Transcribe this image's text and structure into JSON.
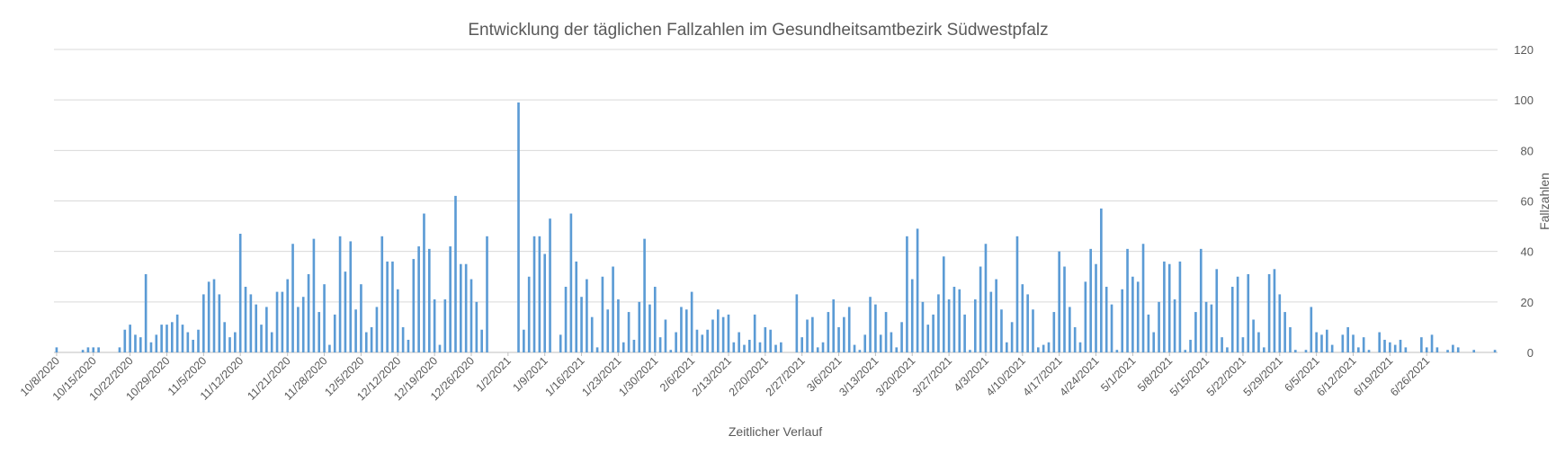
{
  "chart_data": {
    "type": "bar",
    "title": "Entwicklung der täglichen Fallzahlen im Gesundheitsamtbezirk Südwestpfalz",
    "xlabel": "Zeitlicher Verlauf",
    "ylabel": "Fallzahlen",
    "ylim": [
      0,
      120
    ],
    "yticks": [
      0,
      20,
      40,
      60,
      80,
      100,
      120
    ],
    "y_axis_side": "right",
    "grid": true,
    "legend": "none",
    "bar_color": "#5b9bd5",
    "start_date": "10/8/2020",
    "x_tick_labels": [
      "10/8/2020",
      "10/15/2020",
      "10/22/2020",
      "10/29/2020",
      "11/5/2020",
      "11/12/2020",
      "11/21/2020",
      "11/28/2020",
      "12/5/2020",
      "12/12/2020",
      "12/19/2020",
      "12/26/2020",
      "1/2/2021",
      "1/9/2021",
      "1/16/2021",
      "1/23/2021",
      "1/30/2021",
      "2/6/2021",
      "2/13/2021",
      "2/20/2021",
      "2/27/2021",
      "3/6/2021",
      "3/13/2021",
      "3/20/2021",
      "3/27/2021",
      "4/3/2021",
      "4/10/2021",
      "4/17/2021",
      "4/24/2021",
      "5/1/2021",
      "5/8/2021",
      "5/15/2021",
      "5/22/2021",
      "5/29/2021",
      "6/5/2021",
      "6/12/2021",
      "6/19/2021",
      "6/26/2021"
    ],
    "values": [
      2,
      0,
      0,
      0,
      0,
      1,
      2,
      2,
      2,
      0,
      0,
      0,
      2,
      9,
      11,
      7,
      6,
      31,
      4,
      7,
      11,
      11,
      12,
      15,
      11,
      8,
      5,
      9,
      23,
      28,
      29,
      23,
      12,
      6,
      8,
      47,
      26,
      23,
      19,
      11,
      18,
      8,
      24,
      24,
      29,
      43,
      18,
      22,
      31,
      45,
      16,
      27,
      3,
      15,
      46,
      32,
      44,
      17,
      27,
      8,
      10,
      18,
      46,
      36,
      36,
      25,
      10,
      5,
      37,
      42,
      55,
      41,
      21,
      3,
      21,
      42,
      62,
      35,
      35,
      29,
      20,
      9,
      46,
      0,
      0,
      0,
      0,
      0,
      99,
      9,
      30,
      46,
      46,
      39,
      53,
      0,
      7,
      26,
      55,
      36,
      22,
      29,
      14,
      2,
      30,
      17,
      34,
      21,
      4,
      16,
      5,
      20,
      45,
      19,
      26,
      6,
      13,
      1,
      8,
      18,
      17,
      24,
      9,
      7,
      9,
      13,
      17,
      14,
      15,
      4,
      8,
      3,
      5,
      15,
      4,
      10,
      9,
      3,
      4,
      0,
      0,
      23,
      6,
      13,
      14,
      2,
      4,
      16,
      21,
      10,
      14,
      18,
      3,
      1,
      7,
      22,
      19,
      7,
      16,
      8,
      2,
      12,
      46,
      29,
      49,
      20,
      11,
      15,
      23,
      38,
      21,
      26,
      25,
      15,
      1,
      21,
      34,
      43,
      24,
      29,
      17,
      4,
      12,
      46,
      27,
      23,
      17,
      2,
      3,
      4,
      16,
      40,
      34,
      18,
      10,
      4,
      28,
      41,
      35,
      57,
      26,
      19,
      1,
      25,
      41,
      30,
      28,
      43,
      15,
      8,
      20,
      36,
      35,
      21,
      36,
      1,
      5,
      16,
      41,
      20,
      19,
      33,
      6,
      2,
      26,
      30,
      6,
      31,
      13,
      8,
      2,
      31,
      33,
      23,
      16,
      10,
      1,
      0,
      1,
      18,
      8,
      7,
      9,
      3,
      0,
      7,
      10,
      7,
      2,
      6,
      1,
      0,
      8,
      5,
      4,
      3,
      5,
      2,
      0,
      0,
      6,
      2,
      7,
      2,
      0,
      1,
      3,
      2,
      0,
      0,
      1,
      0,
      0,
      0,
      1
    ]
  }
}
